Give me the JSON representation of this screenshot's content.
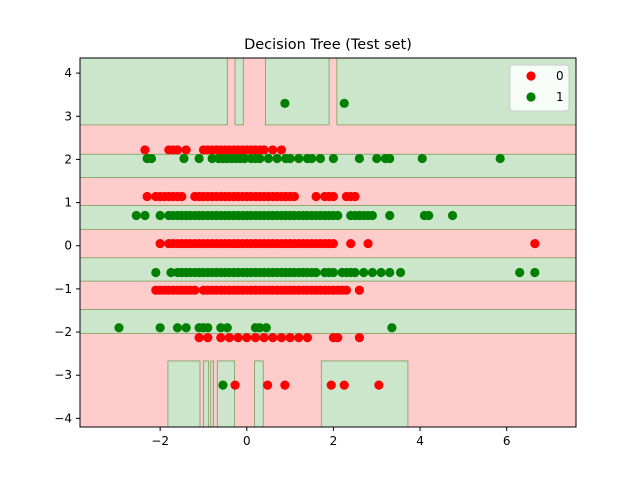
{
  "chart_data": {
    "type": "scatter",
    "title": "Decision Tree (Test set)",
    "xlabel": "",
    "ylabel": "",
    "xlim": [
      -3.85,
      7.6
    ],
    "ylim": [
      -4.2,
      4.35
    ],
    "xticks": [
      -2,
      0,
      2,
      4,
      6
    ],
    "yticks": [
      -4,
      -3,
      -2,
      -1,
      0,
      1,
      2,
      3,
      4
    ],
    "legend_position": "upper-right",
    "colors": {
      "class0_region": "#ffcccc",
      "class1_region": "#cce6cc",
      "class0_point": "#ff0000",
      "class1_point": "#008000",
      "boundary": "#7a9e5a"
    },
    "region_background_class": "0",
    "decision_regions_class1": [
      {
        "x": [
          -3.85,
          -0.45
        ],
        "y": [
          2.8,
          4.35
        ]
      },
      {
        "x": [
          -0.27,
          -0.08
        ],
        "y": [
          2.8,
          4.35
        ]
      },
      {
        "x": [
          0.43,
          1.9
        ],
        "y": [
          2.8,
          4.35
        ]
      },
      {
        "x": [
          2.08,
          7.6
        ],
        "y": [
          2.8,
          4.35
        ]
      },
      {
        "x": [
          -3.85,
          7.6
        ],
        "y": [
          1.58,
          2.12
        ]
      },
      {
        "x": [
          -3.85,
          7.6
        ],
        "y": [
          0.38,
          0.93
        ]
      },
      {
        "x": [
          -3.85,
          7.6
        ],
        "y": [
          -0.82,
          -0.28
        ]
      },
      {
        "x": [
          -3.85,
          7.6
        ],
        "y": [
          -2.03,
          -1.48
        ]
      },
      {
        "x": [
          -1.82,
          -1.08
        ],
        "y": [
          -4.2,
          -2.67
        ]
      },
      {
        "x": [
          -1.0,
          -0.88
        ],
        "y": [
          -4.2,
          -2.67
        ]
      },
      {
        "x": [
          -0.83,
          -0.77
        ],
        "y": [
          -4.2,
          -2.67
        ]
      },
      {
        "x": [
          -0.68,
          -0.28
        ],
        "y": [
          -4.2,
          -2.67
        ]
      },
      {
        "x": [
          0.18,
          0.38
        ],
        "y": [
          -4.2,
          -2.67
        ]
      },
      {
        "x": [
          1.72,
          3.72
        ],
        "y": [
          -4.2,
          -2.67
        ]
      }
    ],
    "series": [
      {
        "name": "0",
        "color": "#ff0000",
        "rows": [
          {
            "y": 2.22,
            "x": [
              -2.35,
              -1.8,
              -1.7,
              -1.6,
              -1.4,
              -1.0,
              -0.9,
              -0.8,
              -0.7,
              -0.6,
              -0.5,
              -0.4,
              -0.3,
              -0.2,
              -0.1,
              0.0,
              0.1,
              0.2,
              0.3,
              0.4,
              0.6,
              0.8
            ]
          },
          {
            "y": 1.14,
            "x": [
              -2.3,
              -2.1,
              -2.0,
              -1.9,
              -1.8,
              -1.7,
              -1.6,
              -1.5,
              -1.2,
              -1.1,
              -1.0,
              -0.9,
              -0.8,
              -0.7,
              -0.6,
              -0.5,
              -0.4,
              -0.3,
              -0.2,
              -0.1,
              0.0,
              0.1,
              0.2,
              0.3,
              0.4,
              0.5,
              0.6,
              0.7,
              0.8,
              0.9,
              1.0,
              1.1,
              1.6,
              1.8,
              1.9,
              2.0,
              2.3,
              2.4,
              2.5
            ]
          },
          {
            "y": 0.05,
            "x": [
              -2.0,
              -1.8,
              -1.7,
              -1.6,
              -1.5,
              -1.4,
              -1.3,
              -1.2,
              -1.1,
              -1.0,
              -0.9,
              -0.8,
              -0.7,
              -0.6,
              -0.5,
              -0.4,
              -0.3,
              -0.2,
              -0.1,
              0.0,
              0.1,
              0.2,
              0.3,
              0.4,
              0.5,
              0.6,
              0.7,
              0.8,
              0.9,
              1.0,
              1.1,
              1.2,
              1.3,
              1.4,
              1.5,
              1.6,
              1.7,
              1.8,
              1.9,
              2.0,
              2.4,
              2.8,
              6.65
            ]
          },
          {
            "y": -1.03,
            "x": [
              -2.1,
              -2.0,
              -1.9,
              -1.8,
              -1.7,
              -1.6,
              -1.5,
              -1.4,
              -1.3,
              -1.2,
              -1.0,
              -0.9,
              -0.8,
              -0.7,
              -0.6,
              -0.5,
              -0.4,
              -0.3,
              -0.2,
              -0.1,
              0.0,
              0.1,
              0.2,
              0.3,
              0.4,
              0.5,
              0.6,
              0.7,
              0.8,
              0.9,
              1.0,
              1.1,
              1.2,
              1.3,
              1.4,
              1.5,
              1.6,
              1.7,
              1.8,
              1.9,
              2.0,
              2.1,
              2.2,
              2.3,
              2.6
            ]
          },
          {
            "y": -2.13,
            "x": [
              -1.1,
              -0.9,
              -0.6,
              -0.4,
              -0.2,
              0.0,
              0.2,
              0.4,
              0.6,
              0.8,
              1.0,
              1.2,
              1.4,
              2.0,
              2.1,
              2.6
            ]
          },
          {
            "y": -3.23,
            "x": [
              -0.27,
              0.48,
              0.88,
              1.95,
              2.25,
              3.05
            ]
          }
        ]
      },
      {
        "name": "1",
        "color": "#008000",
        "rows": [
          {
            "y": 3.3,
            "x": [
              0.88,
              2.25
            ]
          },
          {
            "y": 2.02,
            "x": [
              -2.3,
              -2.2,
              -1.45,
              -1.1,
              -0.8,
              -0.65,
              -0.55,
              -0.45,
              -0.35,
              -0.25,
              -0.15,
              -0.05,
              0.1,
              0.2,
              0.3,
              0.5,
              0.7,
              0.9,
              1.0,
              1.2,
              1.4,
              1.5,
              1.7,
              2.0,
              2.6,
              3.0,
              3.2,
              3.3,
              4.05,
              5.85
            ]
          },
          {
            "y": 0.7,
            "x": [
              -2.55,
              -2.35,
              -2.0,
              -1.8,
              -1.7,
              -1.6,
              -1.5,
              -1.4,
              -1.3,
              -1.2,
              -1.1,
              -1.0,
              -0.9,
              -0.8,
              -0.7,
              -0.6,
              -0.5,
              -0.4,
              -0.3,
              -0.2,
              -0.1,
              0.0,
              0.1,
              0.2,
              0.3,
              0.4,
              0.5,
              0.6,
              0.7,
              0.8,
              0.9,
              1.0,
              1.1,
              1.2,
              1.3,
              1.4,
              1.5,
              1.6,
              1.7,
              1.8,
              1.9,
              2.0,
              2.1,
              2.4,
              2.5,
              2.6,
              2.7,
              2.8,
              2.9,
              3.3,
              4.1,
              4.2,
              4.75
            ]
          },
          {
            "y": -0.62,
            "x": [
              -2.1,
              -1.75,
              -1.6,
              -1.5,
              -1.4,
              -1.3,
              -1.2,
              -1.1,
              -1.0,
              -0.9,
              -0.8,
              -0.7,
              -0.6,
              -0.5,
              -0.4,
              -0.3,
              -0.2,
              -0.1,
              0.0,
              0.1,
              0.2,
              0.3,
              0.4,
              0.5,
              0.6,
              0.7,
              0.8,
              0.9,
              1.0,
              1.1,
              1.2,
              1.3,
              1.4,
              1.5,
              1.6,
              1.8,
              1.9,
              2.0,
              2.2,
              2.3,
              2.4,
              2.5,
              2.7,
              2.9,
              3.1,
              3.3,
              3.55,
              6.3,
              6.65
            ]
          },
          {
            "y": -1.9,
            "x": [
              -2.95,
              -2.0,
              -1.6,
              -1.4,
              -1.1,
              -1.0,
              -0.9,
              -0.6,
              -0.45,
              0.2,
              0.3,
              0.45,
              3.35
            ]
          },
          {
            "y": -3.23,
            "x": [
              -0.55
            ]
          }
        ]
      }
    ],
    "legend": [
      {
        "label": "0",
        "color": "#ff0000"
      },
      {
        "label": "1",
        "color": "#008000"
      }
    ]
  }
}
